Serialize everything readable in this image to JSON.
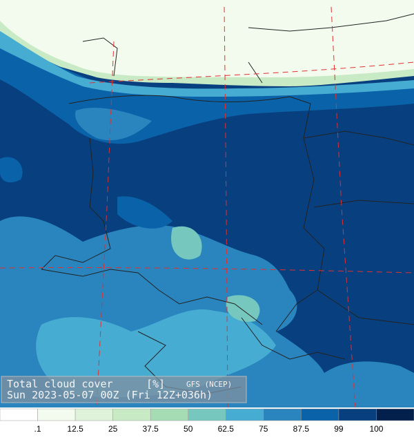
{
  "title": {
    "variable": "Total cloud cover",
    "unit": "[%]",
    "source": "GFS (NCEP)",
    "valid_time": "Sun 2023-05-07 00Z (Fri 12Z+036h)"
  },
  "legend": {
    "colors": [
      "#ffffff",
      "#f3fbee",
      "#dff3da",
      "#c8eac4",
      "#a6dcb4",
      "#76c8be",
      "#47acd2",
      "#2a85be",
      "#0a62a8",
      "#08407f",
      "#03204d"
    ],
    "labels": [
      ".1",
      "12.5",
      "25",
      "37.5",
      "50",
      "62.5",
      "75",
      "87.5",
      "99",
      "100"
    ]
  }
}
